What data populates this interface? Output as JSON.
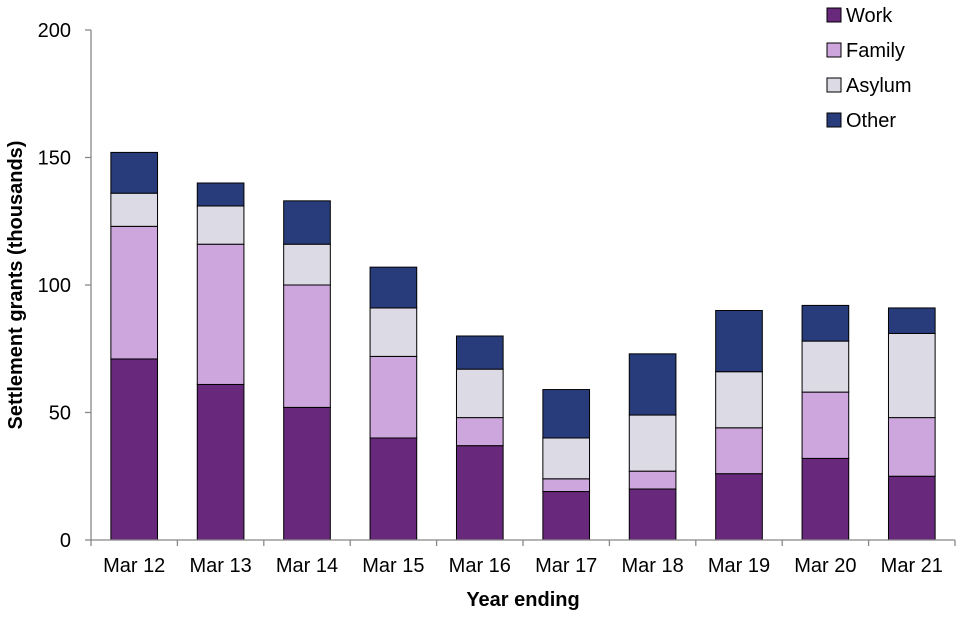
{
  "chart_data": {
    "type": "bar",
    "stacked": true,
    "title": "",
    "xlabel": "Year ending",
    "ylabel": "Settlement grants (thousands)",
    "ylim": [
      0,
      200
    ],
    "yticks": [
      0,
      50,
      100,
      150,
      200
    ],
    "grid": false,
    "legend_position": "top-right",
    "categories": [
      "Mar 12",
      "Mar 13",
      "Mar 14",
      "Mar 15",
      "Mar 16",
      "Mar 17",
      "Mar 18",
      "Mar 19",
      "Mar 20",
      "Mar 21"
    ],
    "series": [
      {
        "name": "Work",
        "color": "#68297c",
        "values": [
          71,
          61,
          52,
          40,
          37,
          19,
          20,
          26,
          32,
          25
        ]
      },
      {
        "name": "Family",
        "color": "#cda6dd",
        "values": [
          52,
          55,
          48,
          32,
          11,
          5,
          7,
          18,
          26,
          23
        ]
      },
      {
        "name": "Asylum",
        "color": "#dcdbe5",
        "values": [
          13,
          15,
          16,
          19,
          19,
          16,
          22,
          22,
          20,
          33
        ]
      },
      {
        "name": "Other",
        "color": "#283c7c",
        "values": [
          16,
          9,
          17,
          16,
          13,
          19,
          24,
          24,
          14,
          10
        ]
      }
    ]
  }
}
